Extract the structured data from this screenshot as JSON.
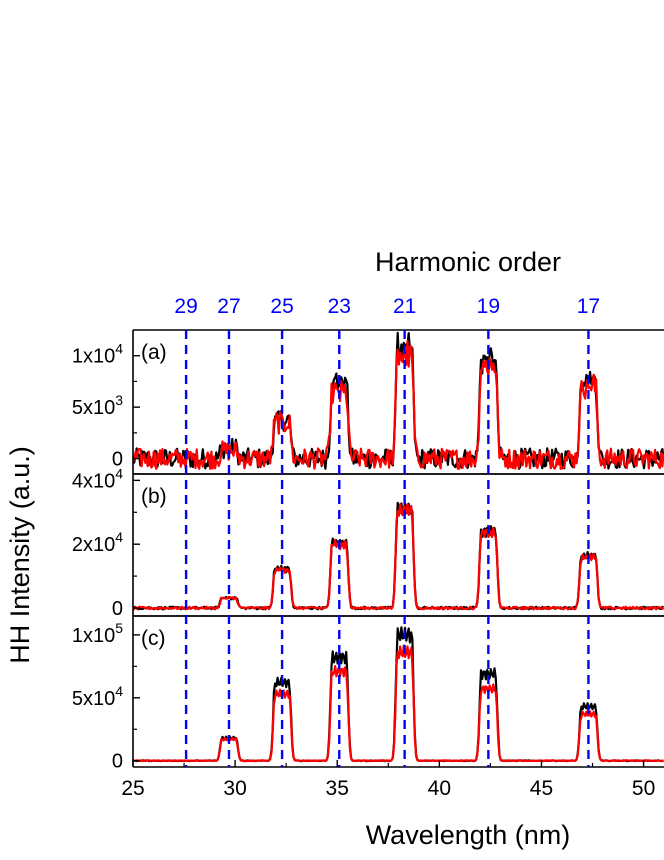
{
  "chart_data": {
    "type": "line",
    "top_axis_label": "Harmonic order",
    "xlabel": "Wavelength (nm)",
    "ylabel": "HH Intensity (a.u.)",
    "xlim": [
      25,
      51
    ],
    "x_ticks": [
      25,
      30,
      35,
      40,
      45,
      50
    ],
    "colors": {
      "series_1": "#000000",
      "series_2": "#ff0000",
      "harmonic_lines": "#0000ff",
      "axes": "#000000"
    },
    "harmonics": [
      {
        "order": "29",
        "wavelength": 27.6
      },
      {
        "order": "27",
        "wavelength": 29.7
      },
      {
        "order": "25",
        "wavelength": 32.3
      },
      {
        "order": "23",
        "wavelength": 35.1
      },
      {
        "order": "21",
        "wavelength": 38.3
      },
      {
        "order": "19",
        "wavelength": 42.4
      },
      {
        "order": "17",
        "wavelength": 47.3
      }
    ],
    "panels": [
      {
        "label": "(a)",
        "ylim": [
          -1500,
          12500
        ],
        "y_ticks": [
          {
            "value": 0,
            "mantissa": "0",
            "exp": ""
          },
          {
            "value": 5000,
            "mantissa": "5x10",
            "exp": "3"
          },
          {
            "value": 10000,
            "mantissa": "1x10",
            "exp": "4"
          }
        ],
        "noise_level": 1000,
        "series": [
          {
            "peaks": [
              0,
              1000,
              3700,
              7500,
              10700,
              9600,
              7700
            ]
          },
          {
            "peaks": [
              0,
              700,
              3500,
              6400,
              10000,
              9100,
              7100
            ]
          }
        ]
      },
      {
        "label": "(b)",
        "ylim": [
          -2500,
          42000
        ],
        "y_ticks": [
          {
            "value": 0,
            "mantissa": "0",
            "exp": ""
          },
          {
            "value": 20000,
            "mantissa": "2x10",
            "exp": "4"
          },
          {
            "value": 40000,
            "mantissa": "4x10",
            "exp": "4"
          }
        ],
        "noise_level": 400,
        "series": [
          {
            "peaks": [
              0,
              3200,
              12300,
              20500,
              31000,
              24000,
              16500
            ]
          },
          {
            "peaks": [
              0,
              3000,
              12000,
              20000,
              30500,
              23500,
              16000
            ]
          }
        ]
      },
      {
        "label": "(c)",
        "ylim": [
          -5000,
          115000
        ],
        "y_ticks": [
          {
            "value": 0,
            "mantissa": "0",
            "exp": ""
          },
          {
            "value": 50000,
            "mantissa": "5x10",
            "exp": "4"
          },
          {
            "value": 100000,
            "mantissa": "1x10",
            "exp": "5"
          }
        ],
        "noise_level": 300,
        "series": [
          {
            "peaks": [
              0,
              18000,
              62000,
              82000,
              100000,
              69000,
              43000
            ]
          },
          {
            "peaks": [
              0,
              17000,
              53000,
              71000,
              86000,
              57000,
              37000
            ]
          }
        ]
      }
    ]
  }
}
